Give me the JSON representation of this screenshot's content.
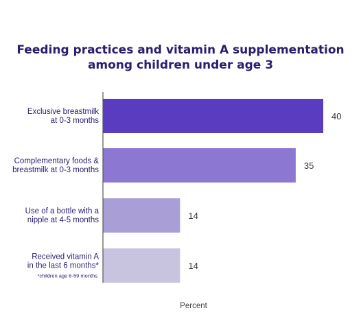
{
  "chart_data": {
    "type": "bar",
    "orientation": "horizontal",
    "title": "Feeding practices and vitamin A supplementation among children under age 3",
    "title_lines": [
      "Feeding practices and vitamin A supplementation",
      "among children under age 3"
    ],
    "xlabel": "Percent",
    "ylabel": "",
    "xlim": [
      0,
      40
    ],
    "grid": false,
    "categories": [
      [
        "Exclusive breastmilk",
        "at 0-3 months"
      ],
      [
        "Complementary foods &",
        "breastmilk at 0-3 months"
      ],
      [
        "Use of a bottle with a",
        "nipple at 4-5 months"
      ],
      [
        "Received vitamin A",
        "in the last 6 months*"
      ]
    ],
    "notes": [
      "",
      "",
      "",
      "*children age 6-59 months"
    ],
    "values": [
      40,
      35,
      14,
      14
    ],
    "colors": [
      "#5a3cc0",
      "#8c78d2",
      "#aa9ed6",
      "#c8c4df"
    ],
    "axis_color": "#555555",
    "label_color": "#2b1d6f",
    "value_label_color": "#333333"
  }
}
